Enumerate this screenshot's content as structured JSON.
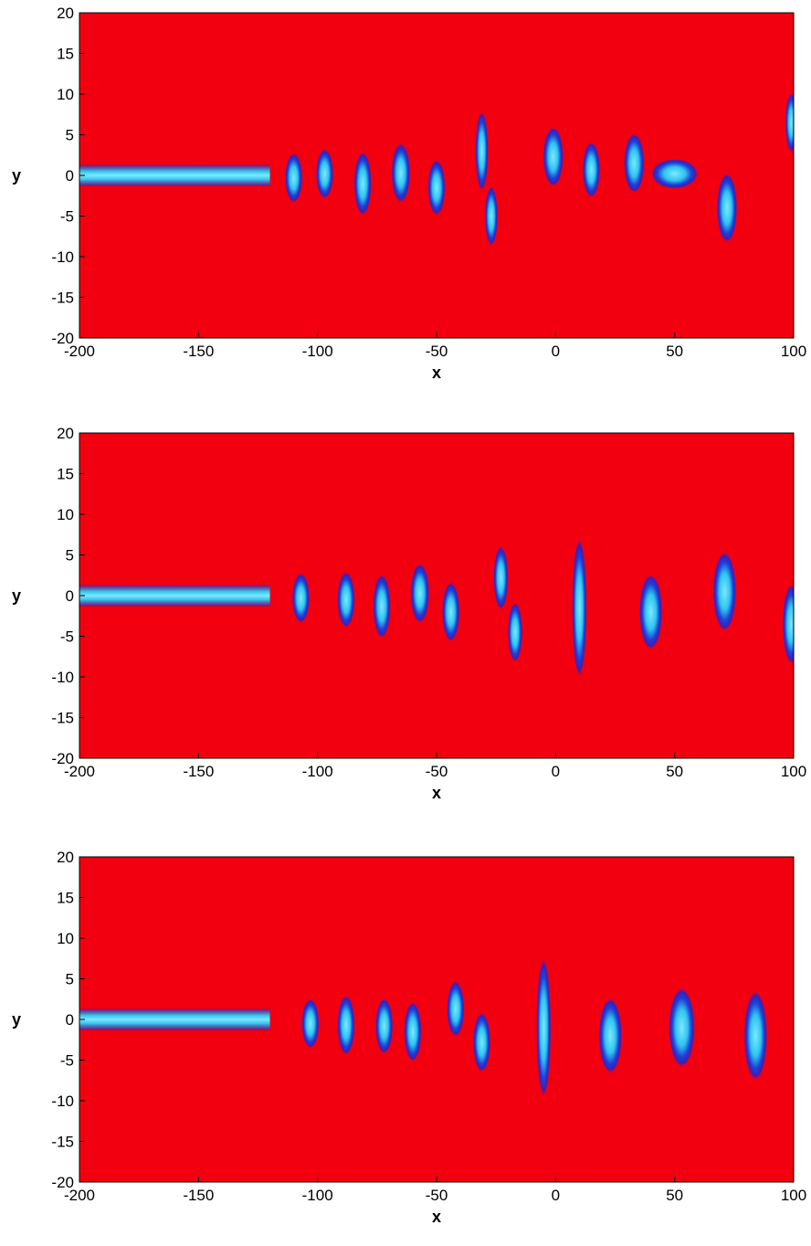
{
  "chart_data": [
    {
      "type": "heatmap",
      "xlabel": "x",
      "ylabel": "y",
      "xlim": [
        -200,
        100
      ],
      "ylim": [
        -20,
        20
      ],
      "xticks": [
        -200,
        -150,
        -100,
        -50,
        0,
        50,
        100
      ],
      "yticks": [
        -20,
        -15,
        -10,
        -5,
        0,
        5,
        10,
        15,
        20
      ],
      "jet": {
        "x": [
          -200,
          -120
        ],
        "y": 0,
        "half_width": 1.3
      },
      "vortices": [
        {
          "x": -110,
          "y": -0.3,
          "rx": 3,
          "ry": 2.5
        },
        {
          "x": -97,
          "y": 0.2,
          "rx": 3,
          "ry": 2.5
        },
        {
          "x": -81,
          "y": -1,
          "rx": 3,
          "ry": 3.2
        },
        {
          "x": -65,
          "y": 0.3,
          "rx": 3.2,
          "ry": 3
        },
        {
          "x": -50,
          "y": -1.5,
          "rx": 3,
          "ry": 2.8
        },
        {
          "x": -31,
          "y": 3,
          "rx": 2.2,
          "ry": 4
        },
        {
          "x": -27,
          "y": -5,
          "rx": 2.2,
          "ry": 3
        },
        {
          "x": -1,
          "y": 2.3,
          "rx": 3.5,
          "ry": 3
        },
        {
          "x": 15,
          "y": 0.7,
          "rx": 3,
          "ry": 2.8
        },
        {
          "x": 33,
          "y": 1.5,
          "rx": 3.5,
          "ry": 3
        },
        {
          "x": 50,
          "y": 0.2,
          "rx": 8,
          "ry": 1.5
        },
        {
          "x": 72,
          "y": -4,
          "rx": 3.5,
          "ry": 3.5
        },
        {
          "x": 99,
          "y": 6.5,
          "rx": 2,
          "ry": 3
        }
      ]
    },
    {
      "type": "heatmap",
      "xlabel": "x",
      "ylabel": "y",
      "xlim": [
        -200,
        100
      ],
      "ylim": [
        -20,
        20
      ],
      "xticks": [
        -200,
        -150,
        -100,
        -50,
        0,
        50,
        100
      ],
      "yticks": [
        -20,
        -15,
        -10,
        -5,
        0,
        5,
        10,
        15,
        20
      ],
      "jet": {
        "x": [
          -200,
          -120
        ],
        "y": 0,
        "half_width": 1.3
      },
      "vortices": [
        {
          "x": -107,
          "y": -0.3,
          "rx": 3,
          "ry": 2.5
        },
        {
          "x": -88,
          "y": -0.5,
          "rx": 3,
          "ry": 2.8
        },
        {
          "x": -73,
          "y": -1.3,
          "rx": 3,
          "ry": 3.2
        },
        {
          "x": -57,
          "y": 0.3,
          "rx": 3.2,
          "ry": 3
        },
        {
          "x": -44,
          "y": -2,
          "rx": 3,
          "ry": 3
        },
        {
          "x": -23,
          "y": 2.2,
          "rx": 2.5,
          "ry": 3.2
        },
        {
          "x": -17,
          "y": -4.5,
          "rx": 2.5,
          "ry": 3
        },
        {
          "x": 10,
          "y": -1.5,
          "rx": 2.5,
          "ry": 7
        },
        {
          "x": 40,
          "y": -2,
          "rx": 4,
          "ry": 3.8
        },
        {
          "x": 71,
          "y": 0.5,
          "rx": 4,
          "ry": 4
        },
        {
          "x": 99,
          "y": -3.5,
          "rx": 3,
          "ry": 4
        }
      ]
    },
    {
      "type": "heatmap",
      "xlabel": "x",
      "ylabel": "y",
      "xlim": [
        -200,
        100
      ],
      "ylim": [
        -20,
        20
      ],
      "xticks": [
        -200,
        -150,
        -100,
        -50,
        0,
        50,
        100
      ],
      "yticks": [
        -20,
        -15,
        -10,
        -5,
        0,
        5,
        10,
        15,
        20
      ],
      "jet": {
        "x": [
          -200,
          -120
        ],
        "y": 0,
        "half_width": 1.3
      },
      "vortices": [
        {
          "x": -103,
          "y": -0.5,
          "rx": 3,
          "ry": 2.5
        },
        {
          "x": -88,
          "y": -0.7,
          "rx": 3,
          "ry": 3
        },
        {
          "x": -72,
          "y": -0.8,
          "rx": 3,
          "ry": 2.8
        },
        {
          "x": -60,
          "y": -1.5,
          "rx": 3,
          "ry": 3
        },
        {
          "x": -42,
          "y": 1.3,
          "rx": 3,
          "ry": 2.8
        },
        {
          "x": -31,
          "y": -2.8,
          "rx": 3,
          "ry": 3
        },
        {
          "x": -5,
          "y": -1,
          "rx": 2.5,
          "ry": 7
        },
        {
          "x": 23,
          "y": -2,
          "rx": 4,
          "ry": 3.8
        },
        {
          "x": 53,
          "y": -1,
          "rx": 4.5,
          "ry": 4
        },
        {
          "x": 84,
          "y": -2,
          "rx": 4,
          "ry": 4.5
        }
      ]
    }
  ]
}
